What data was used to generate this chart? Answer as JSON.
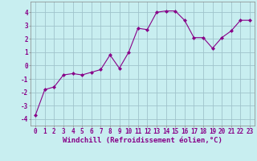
{
  "x": [
    0,
    1,
    2,
    3,
    4,
    5,
    6,
    7,
    8,
    9,
    10,
    11,
    12,
    13,
    14,
    15,
    16,
    17,
    18,
    19,
    20,
    21,
    22,
    23
  ],
  "y": [
    -3.7,
    -1.8,
    -1.6,
    -0.7,
    -0.6,
    -0.7,
    -0.5,
    -0.3,
    0.8,
    -0.2,
    1.0,
    2.8,
    2.7,
    4.0,
    4.1,
    4.1,
    3.4,
    2.1,
    2.1,
    1.3,
    2.1,
    2.6,
    3.4,
    3.4
  ],
  "line_color": "#880088",
  "marker": "D",
  "marker_size": 2.5,
  "background_color": "#c8eef0",
  "grid_color": "#a0c4cc",
  "xlabel": "Windchill (Refroidissement éolien,°C)",
  "tick_color": "#880088",
  "ylim": [
    -4.5,
    4.8
  ],
  "xlim": [
    -0.5,
    23.5
  ],
  "yticks": [
    -4,
    -3,
    -2,
    -1,
    0,
    1,
    2,
    3,
    4
  ],
  "xticks": [
    0,
    1,
    2,
    3,
    4,
    5,
    6,
    7,
    8,
    9,
    10,
    11,
    12,
    13,
    14,
    15,
    16,
    17,
    18,
    19,
    20,
    21,
    22,
    23
  ],
  "tick_fontsize": 5.5,
  "xlabel_fontsize": 6.5,
  "fig_bg_color": "#c8eef0"
}
